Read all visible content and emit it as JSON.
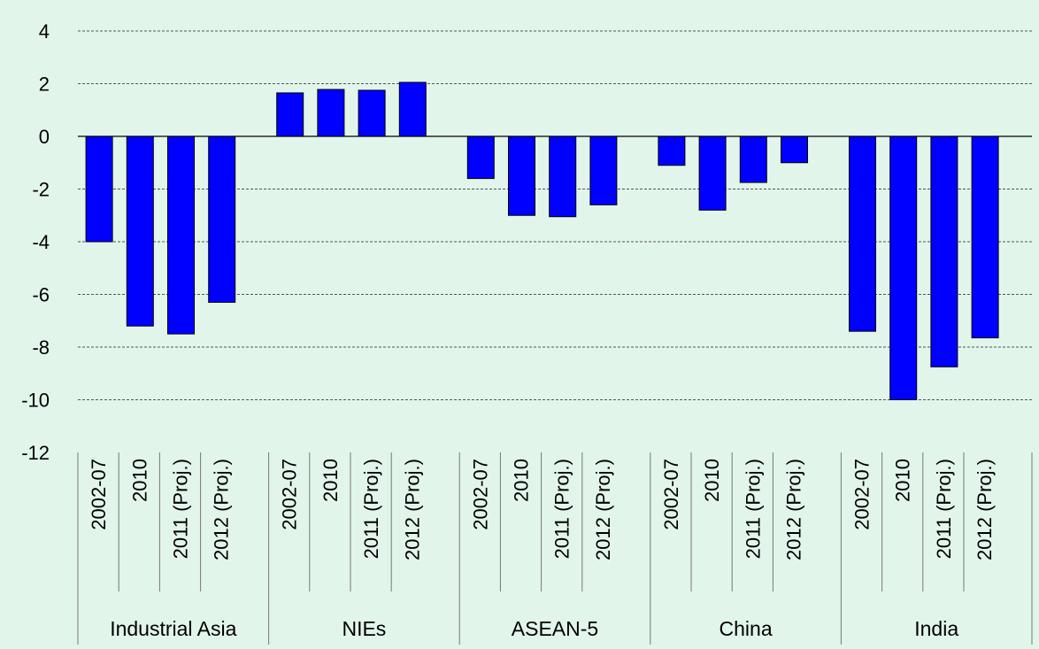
{
  "chart_data": {
    "type": "bar",
    "title": "",
    "xlabel": "",
    "ylabel": "",
    "ylim": [
      -12,
      4
    ],
    "yticks": [
      "4",
      "2",
      "0",
      "-2",
      "-4",
      "-6",
      "-8",
      "-10",
      "-12"
    ],
    "grid": true,
    "bar_color": "#0000ff",
    "background_color": "#e2f5ea",
    "groups": [
      {
        "name": "Industrial Asia",
        "categories": [
          "2002-07",
          "2010",
          "2011 (Proj.)",
          "2012 (Proj.)"
        ],
        "values": [
          -4.0,
          -7.2,
          -7.5,
          -6.3
        ]
      },
      {
        "name": "NIEs",
        "categories": [
          "2002-07",
          "2010",
          "2011 (Proj.)",
          "2012 (Proj.)"
        ],
        "values": [
          1.65,
          1.78,
          1.75,
          2.05
        ]
      },
      {
        "name": "ASEAN-5",
        "categories": [
          "2002-07",
          "2010",
          "2011 (Proj.)",
          "2012 (Proj.)"
        ],
        "values": [
          -1.6,
          -3.0,
          -3.05,
          -2.6
        ]
      },
      {
        "name": "China",
        "categories": [
          "2002-07",
          "2010",
          "2011 (Proj.)",
          "2012 (Proj.)"
        ],
        "values": [
          -1.1,
          -2.8,
          -1.75,
          -1.0
        ]
      },
      {
        "name": "India",
        "categories": [
          "2002-07",
          "2010",
          "2011 (Proj.)",
          "2012 (Proj.)"
        ],
        "values": [
          -7.4,
          -10.0,
          -8.75,
          -7.65
        ]
      }
    ]
  }
}
